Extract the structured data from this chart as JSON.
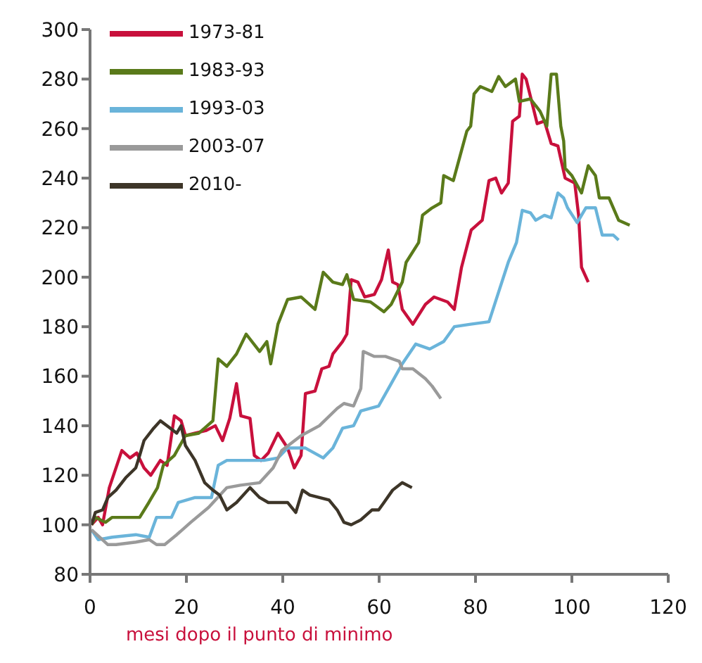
{
  "chart_data": {
    "type": "line",
    "xlabel": "mesi dopo il punto di minimo",
    "xlim": [
      0,
      120
    ],
    "xticks": [
      0,
      20,
      40,
      60,
      80,
      100,
      120
    ],
    "ylim": [
      80,
      300
    ],
    "yticks": [
      80,
      100,
      120,
      140,
      160,
      180,
      200,
      220,
      240,
      260,
      280,
      300
    ],
    "grid": false,
    "legend": "top left",
    "marker": "none",
    "line_style": "solid",
    "series": [
      {
        "name": "1973-81",
        "color": "#c8103c",
        "x": [
          0.3,
          1.7,
          2.6,
          4,
          6.6,
          8.3,
          9.7,
          11.2,
          12.6,
          14.6,
          16,
          17.5,
          18.9,
          19.8,
          21.8,
          24,
          26,
          27.5,
          29,
          30.4,
          31.3,
          33.2,
          34.1,
          35.5,
          37,
          39,
          41,
          42.4,
          43.8,
          44.7,
          46.7,
          48.1,
          49.6,
          50.4,
          52.4,
          53.3,
          54.2,
          55.6,
          57,
          59,
          60.5,
          61.9,
          62.8,
          63.9,
          64.8,
          67,
          69.6,
          71.4,
          74.2,
          75.6,
          77.1,
          79.1,
          81.4,
          82.8,
          84.2,
          85.4,
          86.8,
          87.7,
          89.1,
          89.7,
          90.5,
          91.4,
          92.8,
          94.3,
          95.7,
          97.1,
          98.6,
          100.6,
          101.4,
          102,
          103.4
        ],
        "values": [
          100,
          103,
          100,
          115,
          130,
          127,
          129,
          123,
          120,
          126,
          124,
          144,
          142,
          136,
          137,
          138,
          140,
          134,
          143,
          157,
          144,
          143,
          128,
          126,
          129,
          137,
          131,
          123,
          128,
          153,
          154,
          163,
          164,
          169,
          174,
          177,
          199,
          198,
          192,
          193,
          199,
          211,
          198,
          197,
          187,
          181,
          189,
          192,
          190,
          187,
          204,
          219,
          223,
          239,
          240,
          234,
          238,
          263,
          265,
          282,
          280,
          273,
          262,
          263,
          254,
          253,
          240,
          238,
          225,
          204,
          198
        ]
      },
      {
        "name": "1983-93",
        "color": "#5a7a1a",
        "x": [
          0.3,
          1.1,
          3.2,
          4.6,
          6.9,
          10.3,
          12.2,
          14,
          15.2,
          17.5,
          19.8,
          22.6,
          25.5,
          26.6,
          28.4,
          30.4,
          32.4,
          35.2,
          36.7,
          37.5,
          39,
          41,
          43.8,
          46.7,
          48.4,
          50.4,
          52.4,
          53.3,
          54.7,
          58.2,
          61,
          62.5,
          64.8,
          65.6,
          68.2,
          69,
          71,
          72.8,
          73.4,
          75.4,
          76.8,
          78.2,
          79,
          79.7,
          81,
          83.4,
          84.8,
          86.2,
          88.3,
          89.1,
          91.4,
          93.4,
          94.8,
          95.7,
          96.8,
          97.7,
          98.3,
          98.6,
          100,
          102,
          103.4,
          104.9,
          105.7,
          107.7,
          109.7,
          112
        ],
        "values": [
          100,
          103,
          101,
          103,
          103,
          103,
          109,
          115,
          124,
          128,
          136,
          137,
          142,
          167,
          164,
          169,
          177,
          170,
          174,
          165,
          181,
          191,
          192,
          187,
          202,
          198,
          197,
          201,
          191,
          190,
          186,
          189,
          198,
          206,
          214,
          225,
          228,
          230,
          241,
          239,
          249,
          259,
          261,
          274,
          277,
          275,
          281,
          277,
          280,
          271,
          272,
          267,
          261,
          282,
          282,
          261,
          255,
          244,
          241,
          234,
          245,
          241,
          232,
          232,
          223,
          221
        ]
      },
      {
        "name": "1993-03",
        "color": "#6ab4da",
        "x": [
          0.3,
          1.7,
          4.6,
          9.5,
          12.3,
          13.8,
          16.9,
          18.3,
          21.8,
          25.2,
          26.6,
          28.4,
          32.4,
          36.1,
          39,
          41,
          44.7,
          48.4,
          50.4,
          52.4,
          54.7,
          56.2,
          59.9,
          62.5,
          64.8,
          67.6,
          70.5,
          73.4,
          75.6,
          79,
          82.8,
          84.8,
          86.8,
          88.5,
          89.7,
          91.4,
          92.5,
          94.3,
          95.7,
          97.1,
          98.3,
          99.1,
          101.1,
          102.9,
          104.9,
          106.3,
          108.6,
          109.7
        ],
        "values": [
          98,
          94,
          95,
          96,
          95,
          103,
          103,
          109,
          111,
          111,
          124,
          126,
          126,
          126,
          127,
          131,
          131,
          127,
          131,
          139,
          140,
          146,
          148,
          157,
          165,
          173,
          171,
          174,
          180,
          181,
          182,
          194,
          206,
          214,
          227,
          226,
          223,
          225,
          224,
          234,
          232,
          228,
          222,
          228,
          228,
          217,
          217,
          215
        ]
      },
      {
        "name": "2003-07",
        "color": "#9a9a9a",
        "x": [
          0.3,
          3.7,
          5.4,
          9.5,
          12.3,
          13.8,
          15.5,
          18,
          20.9,
          24.6,
          28.4,
          31.2,
          35.2,
          38,
          39.8,
          43.8,
          47.6,
          51.3,
          52.7,
          54.7,
          56.2,
          56.7,
          59,
          61.3,
          64.2,
          64.8,
          67,
          69.6,
          71,
          72.8
        ],
        "values": [
          98,
          92,
          92,
          93,
          94,
          92,
          92,
          96,
          101,
          107,
          115,
          116,
          117,
          123,
          130,
          136,
          140,
          147,
          149,
          148,
          155,
          170,
          168,
          168,
          166,
          163,
          163,
          159,
          156,
          151
        ]
      },
      {
        "name": "2010-",
        "color": "#3d3528",
        "x": [
          0.3,
          1.1,
          2.6,
          3.7,
          5.4,
          7.4,
          9.5,
          10.3,
          11.2,
          13.2,
          14.6,
          16,
          18,
          18.9,
          19.8,
          21.8,
          23.8,
          25.5,
          26.9,
          28.4,
          30.4,
          33.2,
          35.2,
          37,
          41,
          42.7,
          44.1,
          45.6,
          47.6,
          49.6,
          51.3,
          52.7,
          54.2,
          56.2,
          58.5,
          59.9,
          61,
          62.8,
          64.8,
          66.8
        ],
        "values": [
          100,
          105,
          106,
          111,
          114,
          119,
          123,
          128,
          134,
          139,
          142,
          140,
          137,
          140,
          132,
          126,
          117,
          114,
          112,
          106,
          109,
          115,
          111,
          109,
          109,
          105,
          114,
          112,
          111,
          110,
          106,
          101,
          100,
          102,
          106,
          106,
          109,
          114,
          117,
          115
        ]
      }
    ]
  }
}
